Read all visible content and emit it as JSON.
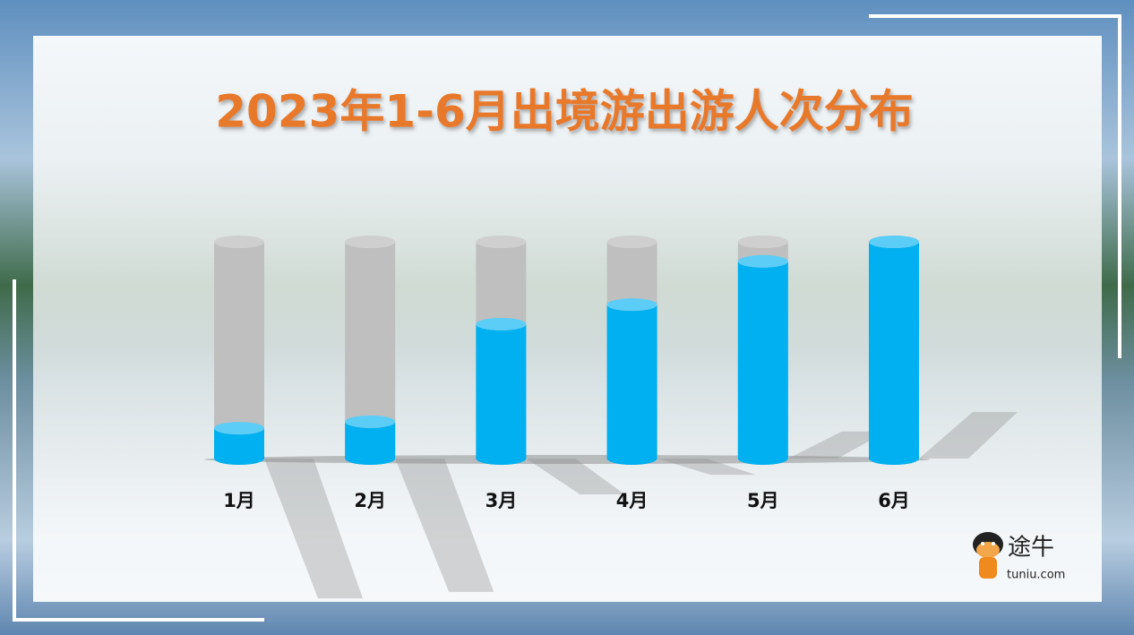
{
  "chart_data": {
    "type": "cylinder-bar",
    "title": "2023年1-6月出境游出游人次分布",
    "categories": [
      "1月",
      "2月",
      "3月",
      "4月",
      "5月",
      "6月"
    ],
    "values": [
      14,
      17,
      62,
      71,
      91,
      100
    ],
    "color": "#00b0f0",
    "top_color": "#5ccdf6",
    "track_color": "#bfbfbf",
    "ylim": [
      0,
      100
    ]
  },
  "logo": {
    "name": "途牛",
    "url": "tuniu.com"
  }
}
